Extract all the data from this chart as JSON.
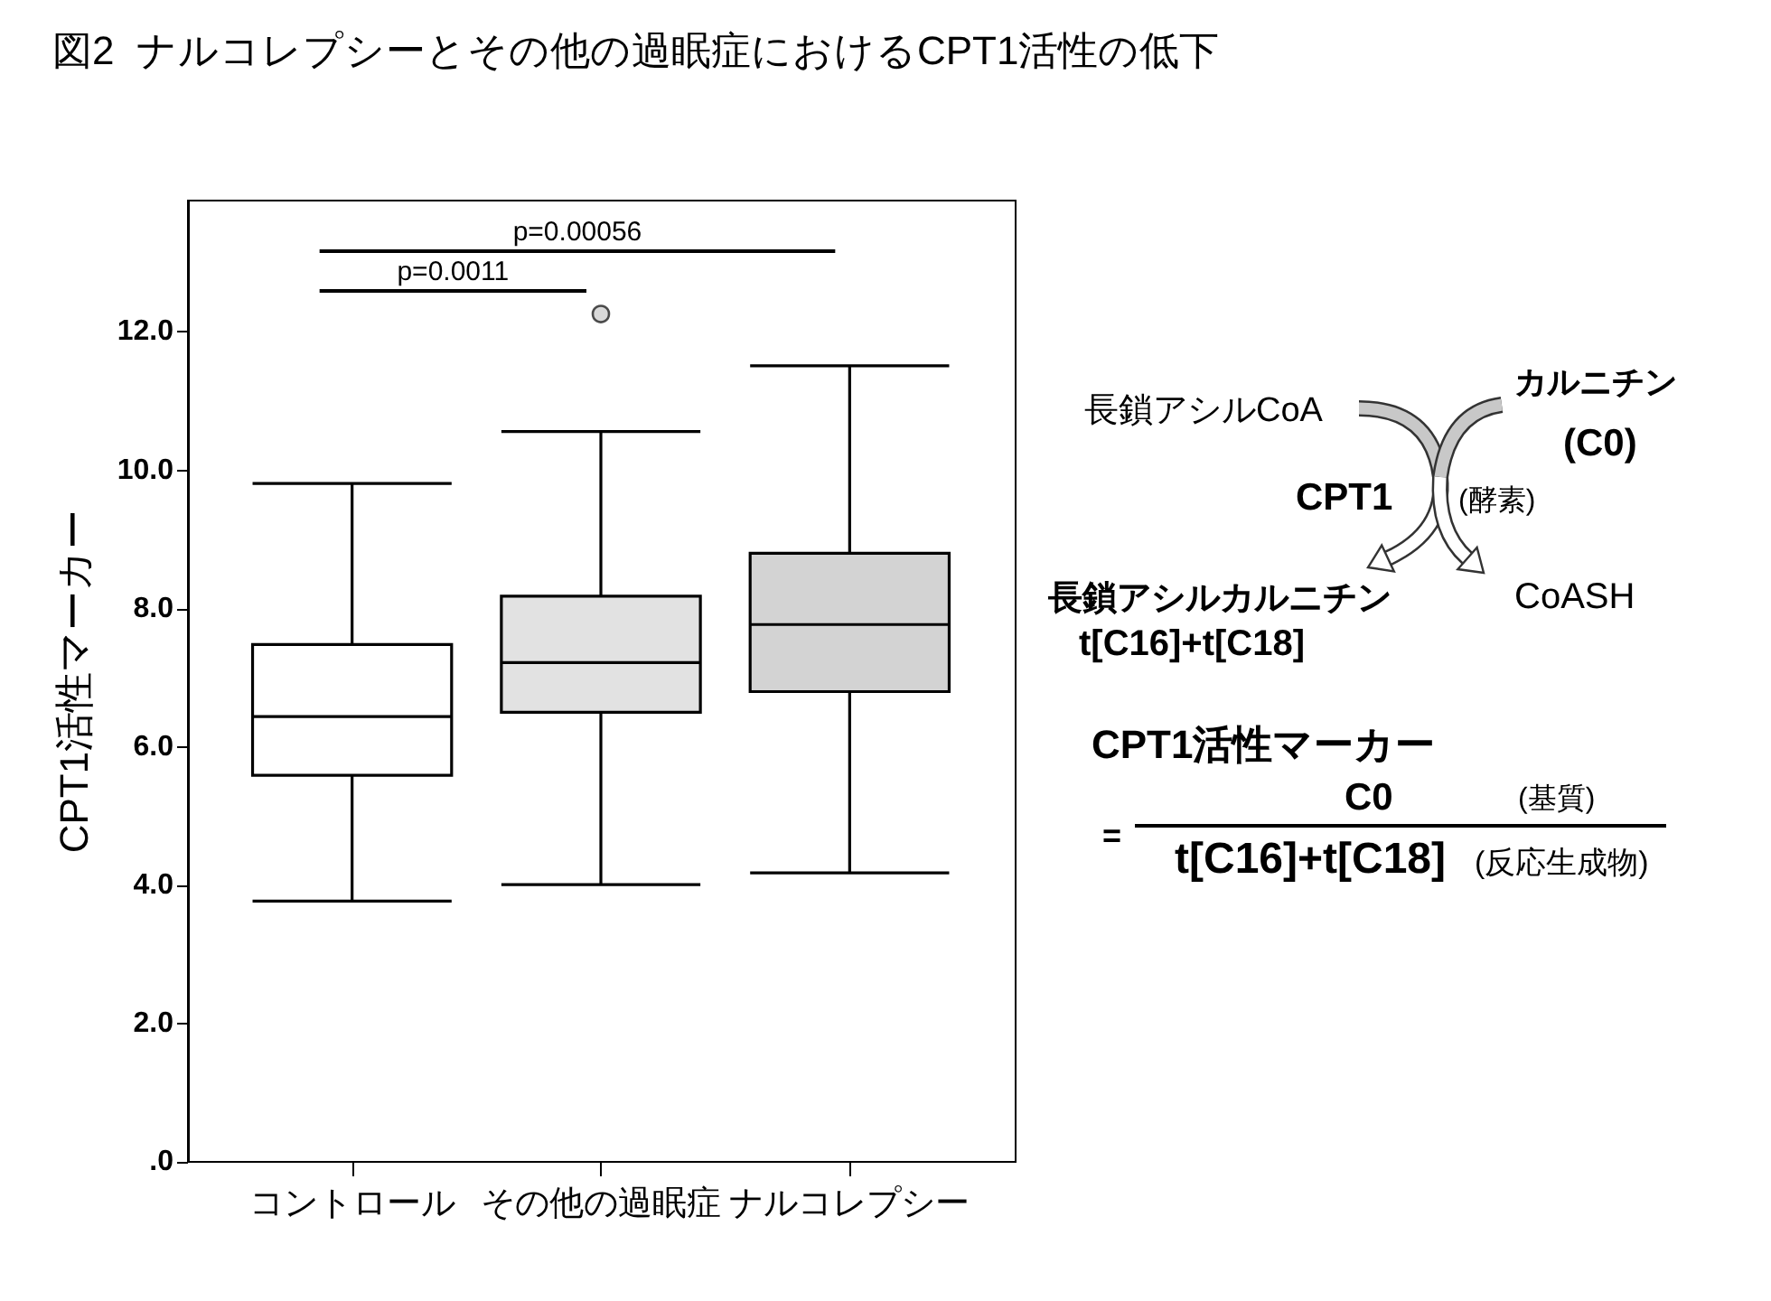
{
  "chart_data": [
    {
      "type": "box",
      "title": "図2  ナルコレプシーとその他の過眠症におけるCPT1活性の低下",
      "ylabel": "CPT1活性マーカー",
      "categories": [
        "コントロール",
        "その他の過眠症",
        "ナルコレプシー"
      ],
      "boxes": [
        {
          "low": 3.77,
          "q1": 5.59,
          "median": 6.44,
          "q3": 7.48,
          "high": 9.81
        },
        {
          "low": 4.01,
          "q1": 6.5,
          "median": 7.22,
          "q3": 8.18,
          "high": 10.56,
          "outliers": [
            12.26
          ]
        },
        {
          "low": 4.18,
          "q1": 6.8,
          "median": 7.77,
          "q3": 8.8,
          "high": 11.51
        }
      ],
      "colors": [
        "#ffffff",
        "#e2e2e2",
        "#d3d3d3"
      ],
      "ylim": [
        0,
        13.9
      ],
      "yticks": [
        {
          "value": 0,
          "label": ".0"
        },
        {
          "value": 2,
          "label": "2.0"
        },
        {
          "value": 4,
          "label": "4.0"
        },
        {
          "value": 6,
          "label": "6.0"
        },
        {
          "value": 8,
          "label": "8.0"
        },
        {
          "value": 10,
          "label": "10.0"
        },
        {
          "value": 12,
          "label": "12.0"
        }
      ],
      "annotations": [
        "p=0.00056",
        "p=0.0011"
      ]
    },
    {
      "type": "other",
      "annotations": [
        "長鎖アシルCoA",
        "カルニチン",
        "(C0)",
        "CPT1",
        "(酵素)",
        "長鎖アシルカルニチン",
        "CoASH",
        "t[C16]+t[C18]",
        "CPT1活性マーカー",
        "C0",
        "(基質)",
        "=",
        "t[C16]+t[C18]",
        "(反応生成物)"
      ]
    }
  ]
}
